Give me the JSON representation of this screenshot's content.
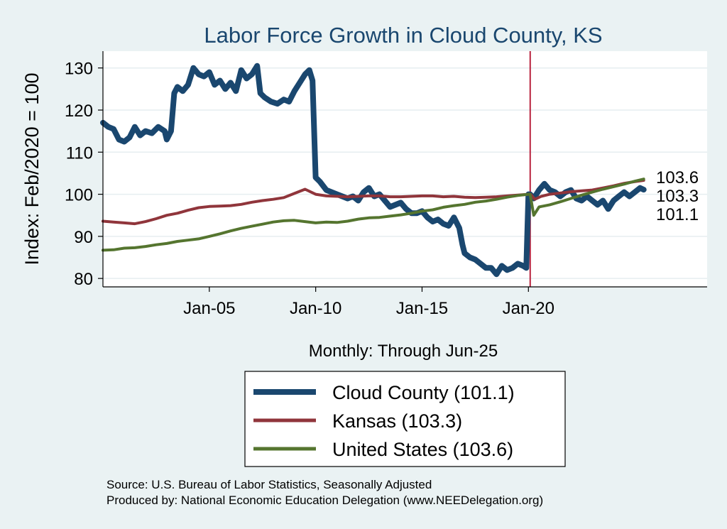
{
  "chart_data": {
    "type": "line",
    "title": "Labor Force Growth in Cloud  County, KS",
    "xlabel": "Monthly: Through Jun-25",
    "ylabel": "Index: Feb/2020 = 100",
    "xlim": [
      2000.0,
      2028.4
    ],
    "ylim": [
      78,
      134
    ],
    "y_ticks": [
      80,
      90,
      100,
      110,
      120,
      130
    ],
    "x_ticks": [
      {
        "value": 2005.0,
        "label": "Jan-05"
      },
      {
        "value": 2010.0,
        "label": "Jan-10"
      },
      {
        "value": 2015.0,
        "label": "Jan-15"
      },
      {
        "value": 2020.0,
        "label": "Jan-20"
      }
    ],
    "reference_line": {
      "x": 2020.083,
      "color": "#b8233f"
    },
    "series": [
      {
        "name": "Cloud  County",
        "legend_label": "Cloud  County (101.1)",
        "end_value": 101.1,
        "end_label": "101.1",
        "color": "#1a476f",
        "width": 8,
        "points": [
          [
            2000.0,
            117.0
          ],
          [
            2000.25,
            116.0
          ],
          [
            2000.5,
            115.5
          ],
          [
            2000.75,
            113.0
          ],
          [
            2001.0,
            112.5
          ],
          [
            2001.25,
            113.5
          ],
          [
            2001.5,
            116.0
          ],
          [
            2001.75,
            114.0
          ],
          [
            2002.0,
            115.0
          ],
          [
            2002.3,
            114.5
          ],
          [
            2002.6,
            116.0
          ],
          [
            2002.9,
            115.0
          ],
          [
            2003.0,
            113.0
          ],
          [
            2003.2,
            115.0
          ],
          [
            2003.35,
            124.0
          ],
          [
            2003.5,
            125.5
          ],
          [
            2003.75,
            124.5
          ],
          [
            2004.0,
            126.0
          ],
          [
            2004.25,
            130.0
          ],
          [
            2004.5,
            128.5
          ],
          [
            2004.75,
            128.0
          ],
          [
            2005.0,
            129.0
          ],
          [
            2005.25,
            126.0
          ],
          [
            2005.5,
            127.0
          ],
          [
            2005.75,
            125.0
          ],
          [
            2006.0,
            126.5
          ],
          [
            2006.25,
            124.5
          ],
          [
            2006.5,
            129.5
          ],
          [
            2006.75,
            127.5
          ],
          [
            2007.0,
            128.5
          ],
          [
            2007.25,
            130.5
          ],
          [
            2007.4,
            124.0
          ],
          [
            2007.6,
            123.0
          ],
          [
            2007.9,
            122.0
          ],
          [
            2008.2,
            121.5
          ],
          [
            2008.5,
            122.5
          ],
          [
            2008.75,
            122.0
          ],
          [
            2009.0,
            124.5
          ],
          [
            2009.25,
            126.5
          ],
          [
            2009.5,
            128.5
          ],
          [
            2009.7,
            129.5
          ],
          [
            2009.85,
            127.0
          ],
          [
            2010.0,
            104.0
          ],
          [
            2010.2,
            103.0
          ],
          [
            2010.5,
            101.0
          ],
          [
            2010.75,
            100.5
          ],
          [
            2011.0,
            100.0
          ],
          [
            2011.25,
            99.5
          ],
          [
            2011.5,
            99.0
          ],
          [
            2011.75,
            99.5
          ],
          [
            2012.0,
            98.5
          ],
          [
            2012.25,
            100.5
          ],
          [
            2012.5,
            101.5
          ],
          [
            2012.75,
            99.5
          ],
          [
            2013.0,
            100.0
          ],
          [
            2013.25,
            98.5
          ],
          [
            2013.5,
            97.0
          ],
          [
            2013.75,
            97.5
          ],
          [
            2014.0,
            98.0
          ],
          [
            2014.25,
            96.5
          ],
          [
            2014.5,
            95.5
          ],
          [
            2014.75,
            95.5
          ],
          [
            2015.0,
            96.0
          ],
          [
            2015.25,
            94.5
          ],
          [
            2015.5,
            93.5
          ],
          [
            2015.75,
            94.0
          ],
          [
            2016.0,
            93.0
          ],
          [
            2016.25,
            92.5
          ],
          [
            2016.5,
            94.5
          ],
          [
            2016.75,
            92.0
          ],
          [
            2016.9,
            88.0
          ],
          [
            2017.0,
            86.0
          ],
          [
            2017.25,
            85.0
          ],
          [
            2017.5,
            84.5
          ],
          [
            2017.75,
            83.5
          ],
          [
            2018.0,
            82.5
          ],
          [
            2018.25,
            82.5
          ],
          [
            2018.5,
            81.0
          ],
          [
            2018.75,
            83.0
          ],
          [
            2019.0,
            82.0
          ],
          [
            2019.25,
            82.5
          ],
          [
            2019.5,
            83.5
          ],
          [
            2019.75,
            83.0
          ],
          [
            2019.9,
            82.5
          ],
          [
            2020.0,
            100.0
          ],
          [
            2020.08,
            100.0
          ],
          [
            2020.25,
            99.0
          ],
          [
            2020.5,
            101.0
          ],
          [
            2020.75,
            102.5
          ],
          [
            2021.0,
            101.0
          ],
          [
            2021.25,
            100.5
          ],
          [
            2021.5,
            99.5
          ],
          [
            2021.75,
            100.5
          ],
          [
            2022.0,
            101.0
          ],
          [
            2022.25,
            99.0
          ],
          [
            2022.5,
            98.5
          ],
          [
            2022.75,
            99.5
          ],
          [
            2023.0,
            98.5
          ],
          [
            2023.25,
            97.5
          ],
          [
            2023.5,
            98.5
          ],
          [
            2023.75,
            96.5
          ],
          [
            2024.0,
            98.5
          ],
          [
            2024.25,
            99.5
          ],
          [
            2024.5,
            100.5
          ],
          [
            2024.75,
            99.5
          ],
          [
            2025.0,
            100.5
          ],
          [
            2025.25,
            101.5
          ],
          [
            2025.42,
            101.1
          ]
        ]
      },
      {
        "name": "Kansas",
        "legend_label": "Kansas (103.3)",
        "end_value": 103.3,
        "end_label": "103.3",
        "color": "#90353b",
        "width": 4,
        "points": [
          [
            2000.0,
            93.6
          ],
          [
            2000.5,
            93.4
          ],
          [
            2001.0,
            93.2
          ],
          [
            2001.5,
            93.0
          ],
          [
            2002.0,
            93.5
          ],
          [
            2002.5,
            94.2
          ],
          [
            2003.0,
            95.0
          ],
          [
            2003.5,
            95.5
          ],
          [
            2004.0,
            96.2
          ],
          [
            2004.5,
            96.8
          ],
          [
            2005.0,
            97.1
          ],
          [
            2005.5,
            97.2
          ],
          [
            2006.0,
            97.3
          ],
          [
            2006.5,
            97.6
          ],
          [
            2007.0,
            98.1
          ],
          [
            2007.5,
            98.5
          ],
          [
            2008.0,
            98.8
          ],
          [
            2008.5,
            99.2
          ],
          [
            2009.0,
            100.2
          ],
          [
            2009.5,
            101.2
          ],
          [
            2010.0,
            100.0
          ],
          [
            2010.5,
            99.6
          ],
          [
            2011.0,
            99.5
          ],
          [
            2011.5,
            99.4
          ],
          [
            2012.0,
            99.5
          ],
          [
            2012.5,
            99.6
          ],
          [
            2013.0,
            99.6
          ],
          [
            2013.5,
            99.4
          ],
          [
            2014.0,
            99.4
          ],
          [
            2014.5,
            99.5
          ],
          [
            2015.0,
            99.6
          ],
          [
            2015.5,
            99.6
          ],
          [
            2016.0,
            99.4
          ],
          [
            2016.5,
            99.5
          ],
          [
            2017.0,
            99.3
          ],
          [
            2017.5,
            99.2
          ],
          [
            2018.0,
            99.3
          ],
          [
            2018.5,
            99.4
          ],
          [
            2019.0,
            99.6
          ],
          [
            2019.5,
            99.8
          ],
          [
            2020.0,
            100.0
          ],
          [
            2020.1,
            100.0
          ],
          [
            2020.3,
            98.8
          ],
          [
            2020.6,
            99.5
          ],
          [
            2021.0,
            100.0
          ],
          [
            2021.5,
            100.3
          ],
          [
            2022.0,
            100.6
          ],
          [
            2022.5,
            100.8
          ],
          [
            2023.0,
            101.0
          ],
          [
            2023.5,
            101.5
          ],
          [
            2024.0,
            102.0
          ],
          [
            2024.5,
            102.6
          ],
          [
            2025.0,
            103.0
          ],
          [
            2025.42,
            103.3
          ]
        ]
      },
      {
        "name": "United States",
        "legend_label": "United States (103.6)",
        "end_value": 103.6,
        "end_label": "103.6",
        "color": "#55752f",
        "width": 4,
        "points": [
          [
            2000.0,
            86.7
          ],
          [
            2000.5,
            86.8
          ],
          [
            2001.0,
            87.2
          ],
          [
            2001.5,
            87.3
          ],
          [
            2002.0,
            87.6
          ],
          [
            2002.5,
            88.0
          ],
          [
            2003.0,
            88.3
          ],
          [
            2003.5,
            88.8
          ],
          [
            2004.0,
            89.1
          ],
          [
            2004.5,
            89.4
          ],
          [
            2005.0,
            90.0
          ],
          [
            2005.5,
            90.6
          ],
          [
            2006.0,
            91.3
          ],
          [
            2006.5,
            91.9
          ],
          [
            2007.0,
            92.4
          ],
          [
            2007.5,
            92.9
          ],
          [
            2008.0,
            93.4
          ],
          [
            2008.5,
            93.7
          ],
          [
            2009.0,
            93.8
          ],
          [
            2009.5,
            93.5
          ],
          [
            2010.0,
            93.2
          ],
          [
            2010.5,
            93.4
          ],
          [
            2011.0,
            93.3
          ],
          [
            2011.5,
            93.6
          ],
          [
            2012.0,
            94.1
          ],
          [
            2012.5,
            94.4
          ],
          [
            2013.0,
            94.5
          ],
          [
            2013.5,
            94.8
          ],
          [
            2014.0,
            95.1
          ],
          [
            2014.5,
            95.5
          ],
          [
            2015.0,
            96.0
          ],
          [
            2015.5,
            96.3
          ],
          [
            2016.0,
            96.9
          ],
          [
            2016.5,
            97.3
          ],
          [
            2017.0,
            97.6
          ],
          [
            2017.5,
            98.1
          ],
          [
            2018.0,
            98.4
          ],
          [
            2018.5,
            98.8
          ],
          [
            2019.0,
            99.3
          ],
          [
            2019.5,
            99.7
          ],
          [
            2020.0,
            100.0
          ],
          [
            2020.08,
            100.0
          ],
          [
            2020.25,
            95.0
          ],
          [
            2020.5,
            97.0
          ],
          [
            2021.0,
            97.5
          ],
          [
            2021.5,
            98.2
          ],
          [
            2022.0,
            99.0
          ],
          [
            2022.5,
            99.8
          ],
          [
            2023.0,
            100.5
          ],
          [
            2023.5,
            101.2
          ],
          [
            2024.0,
            101.8
          ],
          [
            2024.5,
            102.4
          ],
          [
            2025.0,
            103.1
          ],
          [
            2025.42,
            103.6
          ]
        ]
      }
    ]
  },
  "source_line": "Source: U.S. Bureau of Labor Statistics, Seasonally Adjusted",
  "produced_line": "Produced by: National Economic Education Delegation (www.NEEDelegation.org)"
}
